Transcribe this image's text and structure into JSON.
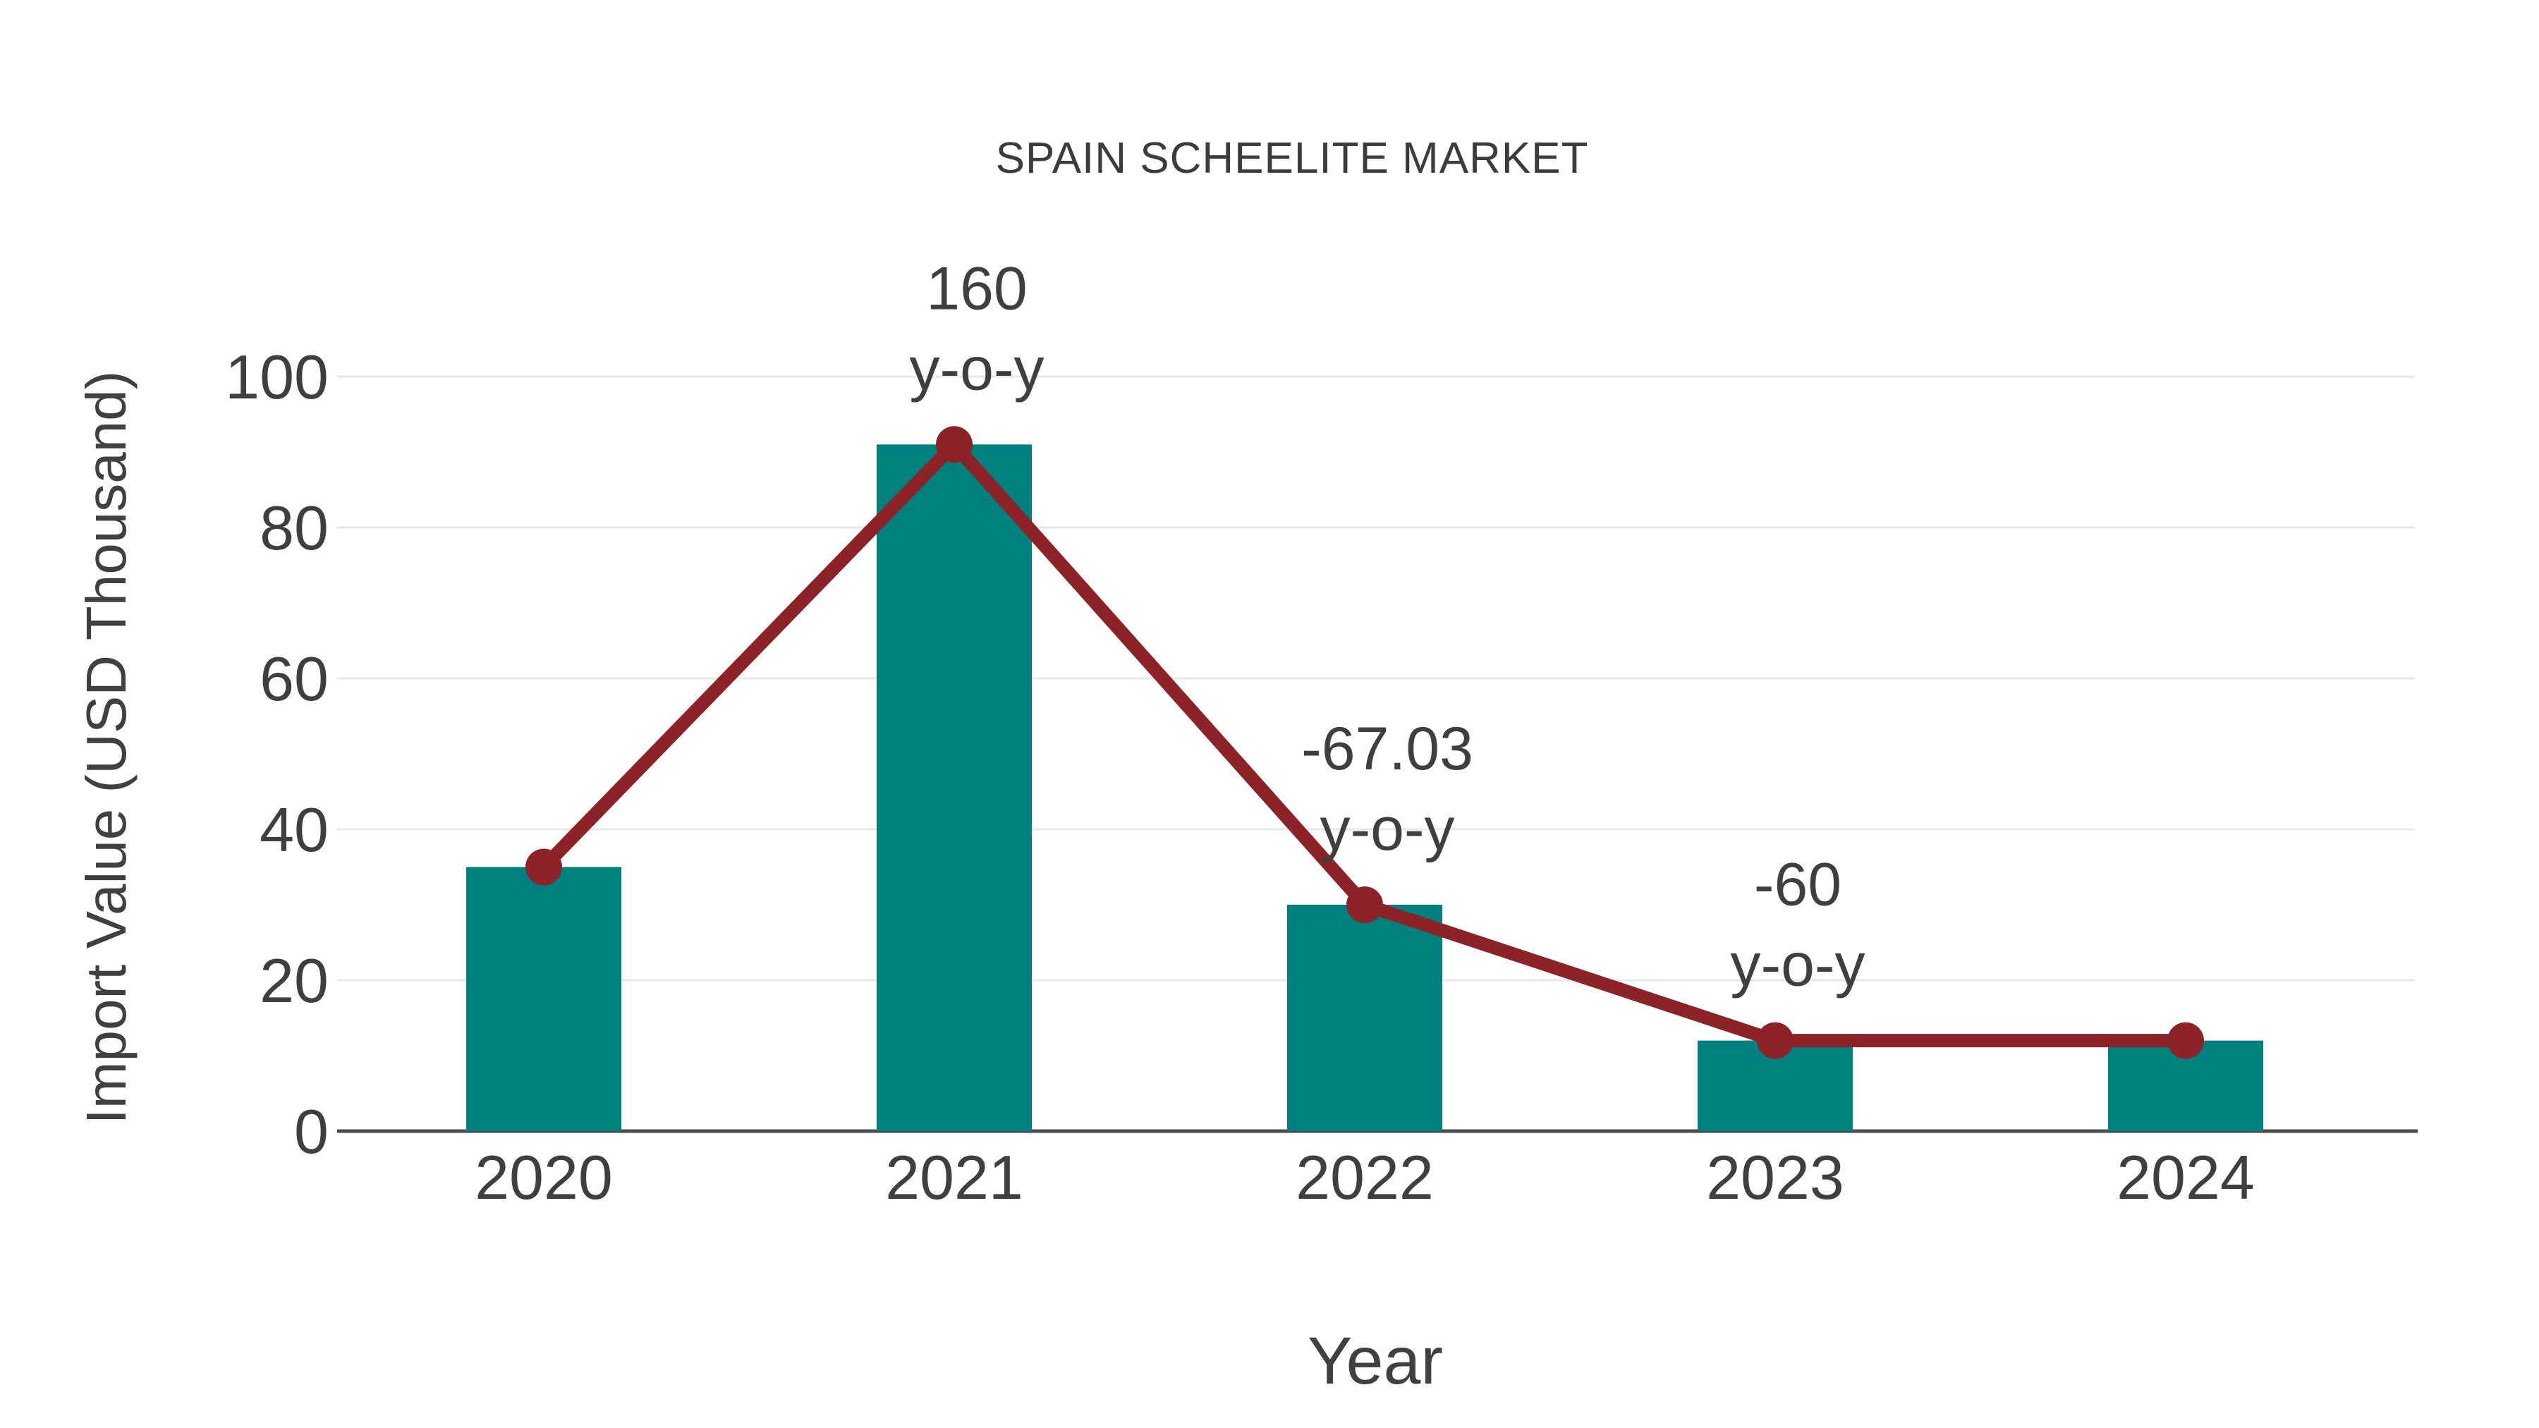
{
  "chart_data": {
    "type": "bar",
    "title": "SPAIN SCHEELITE MARKET",
    "xlabel": "Year",
    "ylabel": "Import Value (USD Thousand)",
    "categories": [
      "2020",
      "2021",
      "2022",
      "2023",
      "2024"
    ],
    "series": [
      {
        "name": "import-value-bars",
        "type": "bar",
        "values": [
          35,
          91,
          30,
          12,
          12
        ]
      },
      {
        "name": "yoy-trend-line",
        "type": "line",
        "values": [
          35,
          91,
          30,
          12,
          12
        ]
      }
    ],
    "annotations": [
      {
        "category": "2021",
        "line1": "160",
        "line2": "y-o-y"
      },
      {
        "category": "2022",
        "line1": "-67.03",
        "line2": "y-o-y"
      },
      {
        "category": "2023",
        "line1": "-60",
        "line2": "y-o-y"
      }
    ],
    "y_ticks": [
      0,
      20,
      40,
      60,
      80,
      100
    ],
    "ylim": [
      0,
      100
    ],
    "grid": true,
    "legend_position": "none"
  },
  "colors": {
    "bar": "#00807f",
    "line": "#8b2328",
    "marker": "#8b2328",
    "text": "#3f3f3f",
    "gridline": "#e8e8e8",
    "axis_line": "#4b4b4b",
    "background": "#ffffff"
  }
}
